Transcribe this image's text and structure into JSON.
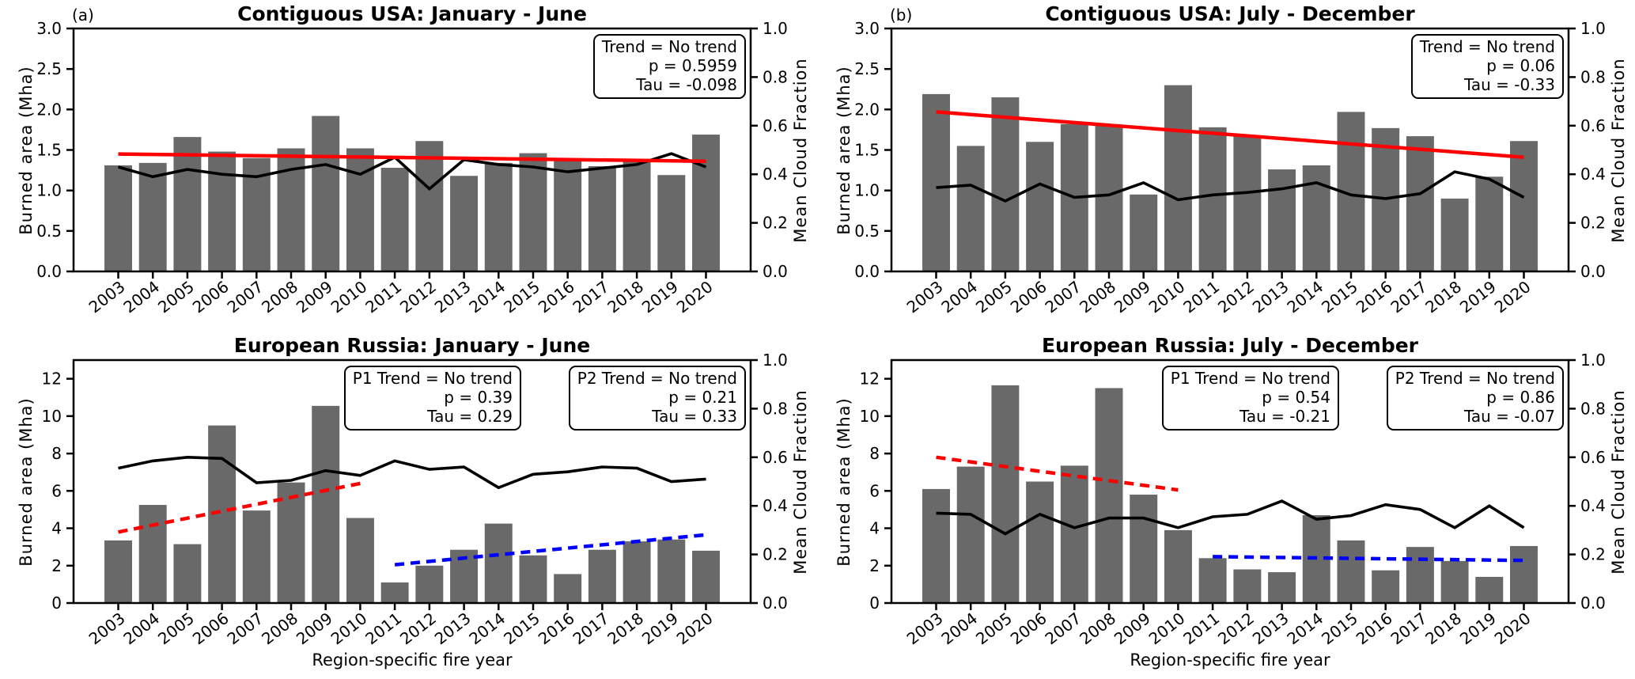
{
  "figure": {
    "background": "#ffffff",
    "colors": {
      "bar": "#696969",
      "cloud_line": "#000000",
      "trend_red": "#ff0000",
      "trend_blue": "#0000ff",
      "frame": "#000000"
    }
  },
  "chart_data": [
    {
      "type": "bar+line",
      "panel_label": "(a)",
      "title": "Contiguous USA: January - June",
      "xlabel": "",
      "ylabel_left": "Burned area (Mha)",
      "ylabel_right": "Mean Cloud Fraction",
      "ylim_left": [
        0,
        3.0
      ],
      "ylim_right": [
        0,
        1.0
      ],
      "yticks_left": {
        "values": [
          0.0,
          0.5,
          1.0,
          1.5,
          2.0,
          2.5,
          3.0
        ],
        "labels": [
          "0.0",
          "0.5",
          "1.0",
          "1.5",
          "2.0",
          "2.5",
          "3.0"
        ]
      },
      "yticks_right": {
        "values": [
          0.0,
          0.2,
          0.4,
          0.6,
          0.8,
          1.0
        ],
        "labels": [
          "0.0",
          "0.2",
          "0.4",
          "0.6",
          "0.8",
          "1.0"
        ]
      },
      "categories": [
        "2003",
        "2004",
        "2005",
        "2006",
        "2007",
        "2008",
        "2009",
        "2010",
        "2011",
        "2012",
        "2013",
        "2014",
        "2015",
        "2016",
        "2017",
        "2018",
        "2019",
        "2020"
      ],
      "bar_series": {
        "name": "Burned area",
        "values": [
          1.31,
          1.34,
          1.66,
          1.48,
          1.4,
          1.52,
          1.92,
          1.52,
          1.28,
          1.61,
          1.18,
          1.34,
          1.46,
          1.39,
          1.3,
          1.39,
          1.19,
          1.69
        ]
      },
      "line_series": {
        "name": "Mean Cloud Fraction",
        "values": [
          0.43,
          0.39,
          0.42,
          0.4,
          0.39,
          0.42,
          0.44,
          0.4,
          0.47,
          0.34,
          0.46,
          0.44,
          0.43,
          0.41,
          0.425,
          0.44,
          0.485,
          0.43
        ]
      },
      "trend_lines": [
        {
          "name": "trend",
          "color": "#ff0000",
          "dashed": false,
          "from_year": "2003",
          "to_year": "2020",
          "from_value": 1.45,
          "to_value": 1.36
        }
      ],
      "stat_boxes": [
        {
          "lines": [
            "Trend = No trend",
            "p = 0.5959",
            "Tau = -0.098"
          ]
        }
      ]
    },
    {
      "type": "bar+line",
      "panel_label": "(b)",
      "title": "Contiguous USA: July - December",
      "xlabel": "",
      "ylabel_left": "Burned area (Mha)",
      "ylabel_right": "Mean Cloud Fraction",
      "ylim_left": [
        0,
        3.0
      ],
      "ylim_right": [
        0,
        1.0
      ],
      "yticks_left": {
        "values": [
          0.0,
          0.5,
          1.0,
          1.5,
          2.0,
          2.5,
          3.0
        ],
        "labels": [
          "0.0",
          "0.5",
          "1.0",
          "1.5",
          "2.0",
          "2.5",
          "3.0"
        ]
      },
      "yticks_right": {
        "values": [
          0.0,
          0.2,
          0.4,
          0.6,
          0.8,
          1.0
        ],
        "labels": [
          "0.0",
          "0.2",
          "0.4",
          "0.6",
          "0.8",
          "1.0"
        ]
      },
      "categories": [
        "2003",
        "2004",
        "2005",
        "2006",
        "2007",
        "2008",
        "2009",
        "2010",
        "2011",
        "2012",
        "2013",
        "2014",
        "2015",
        "2016",
        "2017",
        "2018",
        "2019",
        "2020"
      ],
      "bar_series": {
        "name": "Burned area",
        "values": [
          2.19,
          1.55,
          2.15,
          1.6,
          1.82,
          1.8,
          0.95,
          2.3,
          1.78,
          1.68,
          1.26,
          1.31,
          1.97,
          1.77,
          1.67,
          0.9,
          1.17,
          1.61
        ]
      },
      "line_series": {
        "name": "Mean Cloud Fraction",
        "values": [
          0.345,
          0.355,
          0.29,
          0.36,
          0.305,
          0.315,
          0.365,
          0.295,
          0.315,
          0.325,
          0.34,
          0.365,
          0.315,
          0.3,
          0.32,
          0.41,
          0.38,
          0.305
        ]
      },
      "trend_lines": [
        {
          "name": "trend",
          "color": "#ff0000",
          "dashed": false,
          "from_year": "2003",
          "to_year": "2020",
          "from_value": 1.97,
          "to_value": 1.41
        }
      ],
      "stat_boxes": [
        {
          "lines": [
            "Trend = No trend",
            "p = 0.06",
            "Tau = -0.33"
          ]
        }
      ]
    },
    {
      "type": "bar+line",
      "panel_label": "",
      "title": "European Russia: January - June",
      "xlabel": "Region-specific fire year",
      "ylabel_left": "Burned area (Mha)",
      "ylabel_right": "Mean Cloud Fraction",
      "ylim_left": [
        0,
        13.0
      ],
      "ylim_right": [
        0,
        1.0
      ],
      "yticks_left": {
        "values": [
          0,
          2,
          4,
          6,
          8,
          10,
          12
        ],
        "labels": [
          "0",
          "2",
          "4",
          "6",
          "8",
          "10",
          "12"
        ]
      },
      "yticks_right": {
        "values": [
          0.0,
          0.2,
          0.4,
          0.6,
          0.8,
          1.0
        ],
        "labels": [
          "0.0",
          "0.2",
          "0.4",
          "0.6",
          "0.8",
          "1.0"
        ]
      },
      "categories": [
        "2003",
        "2004",
        "2005",
        "2006",
        "2007",
        "2008",
        "2009",
        "2010",
        "2011",
        "2012",
        "2013",
        "2014",
        "2015",
        "2016",
        "2017",
        "2018",
        "2019",
        "2020"
      ],
      "bar_series": {
        "name": "Burned area",
        "values": [
          3.35,
          5.25,
          3.15,
          9.5,
          4.95,
          6.45,
          10.55,
          4.55,
          1.1,
          2.0,
          2.85,
          4.25,
          2.55,
          1.55,
          2.85,
          3.3,
          3.4,
          2.8
        ]
      },
      "line_series": {
        "name": "Mean Cloud Fraction",
        "values": [
          0.555,
          0.585,
          0.6,
          0.595,
          0.495,
          0.505,
          0.545,
          0.525,
          0.585,
          0.55,
          0.56,
          0.475,
          0.53,
          0.54,
          0.56,
          0.555,
          0.5,
          0.51
        ]
      },
      "trend_lines": [
        {
          "name": "P1 trend",
          "color": "#ff0000",
          "dashed": true,
          "from_year": "2003",
          "to_year": "2010",
          "from_value": 3.8,
          "to_value": 6.4
        },
        {
          "name": "P2 trend",
          "color": "#0000ff",
          "dashed": true,
          "from_year": "2011",
          "to_year": "2020",
          "from_value": 2.05,
          "to_value": 3.65
        }
      ],
      "stat_boxes": [
        {
          "lines": [
            "P1 Trend = No trend",
            "p = 0.39",
            "Tau = 0.29"
          ]
        },
        {
          "lines": [
            "P2 Trend = No trend",
            "p = 0.21",
            "Tau = 0.33"
          ]
        }
      ]
    },
    {
      "type": "bar+line",
      "panel_label": "",
      "title": "European Russia: July - December",
      "xlabel": "Region-specific fire year",
      "ylabel_left": "Burned area (Mha)",
      "ylabel_right": "Mean Cloud Fraction",
      "ylim_left": [
        0,
        13.0
      ],
      "ylim_right": [
        0,
        1.0
      ],
      "yticks_left": {
        "values": [
          0,
          2,
          4,
          6,
          8,
          10,
          12
        ],
        "labels": [
          "0",
          "2",
          "4",
          "6",
          "8",
          "10",
          "12"
        ]
      },
      "yticks_right": {
        "values": [
          0.0,
          0.2,
          0.4,
          0.6,
          0.8,
          1.0
        ],
        "labels": [
          "0.0",
          "0.2",
          "0.4",
          "0.6",
          "0.8",
          "1.0"
        ]
      },
      "categories": [
        "2003",
        "2004",
        "2005",
        "2006",
        "2007",
        "2008",
        "2009",
        "2010",
        "2011",
        "2012",
        "2013",
        "2014",
        "2015",
        "2016",
        "2017",
        "2018",
        "2019",
        "2020"
      ],
      "bar_series": {
        "name": "Burned area",
        "values": [
          6.1,
          7.3,
          11.65,
          6.5,
          7.35,
          11.5,
          5.8,
          3.9,
          2.4,
          1.8,
          1.65,
          4.7,
          3.35,
          1.75,
          3.0,
          2.25,
          1.4,
          3.05
        ]
      },
      "line_series": {
        "name": "Mean Cloud Fraction",
        "values": [
          0.37,
          0.365,
          0.285,
          0.365,
          0.31,
          0.35,
          0.35,
          0.31,
          0.355,
          0.365,
          0.42,
          0.345,
          0.36,
          0.405,
          0.385,
          0.31,
          0.4,
          0.31
        ]
      },
      "trend_lines": [
        {
          "name": "P1 trend",
          "color": "#ff0000",
          "dashed": true,
          "from_year": "2003",
          "to_year": "2010",
          "from_value": 7.8,
          "to_value": 6.05
        },
        {
          "name": "P2 trend",
          "color": "#0000ff",
          "dashed": true,
          "from_year": "2011",
          "to_year": "2020",
          "from_value": 2.48,
          "to_value": 2.28
        }
      ],
      "stat_boxes": [
        {
          "lines": [
            "P1 Trend = No trend",
            "p = 0.54",
            "Tau = -0.21"
          ]
        },
        {
          "lines": [
            "P2 Trend = No trend",
            "p = 0.86",
            "Tau = -0.07"
          ]
        }
      ]
    }
  ]
}
